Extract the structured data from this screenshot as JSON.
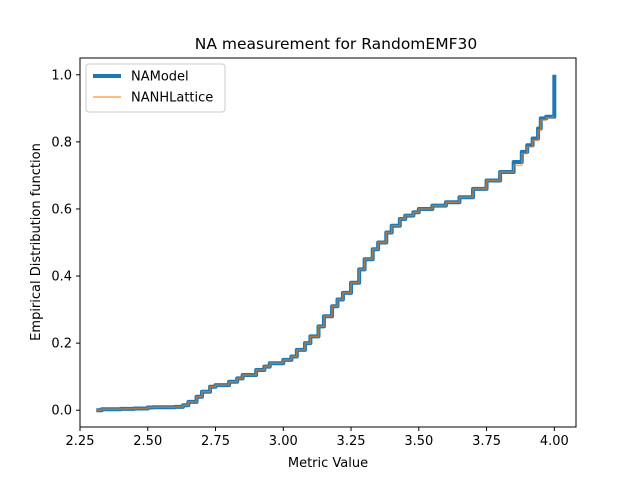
{
  "chart_data": {
    "type": "line",
    "title": "NA measurement for RandomEMF30",
    "xlabel": "Metric Value",
    "ylabel": "Empirical Distribution function",
    "xlim": [
      2.25,
      4.08
    ],
    "ylim": [
      -0.05,
      1.05
    ],
    "xticks": [
      2.25,
      2.5,
      2.75,
      3.0,
      3.25,
      3.5,
      3.75,
      4.0
    ],
    "xtick_labels": [
      "2.25",
      "2.50",
      "2.75",
      "3.00",
      "3.25",
      "3.50",
      "3.75",
      "4.00"
    ],
    "yticks": [
      0.0,
      0.2,
      0.4,
      0.6,
      0.8,
      1.0
    ],
    "ytick_labels": [
      "0.0",
      "0.2",
      "0.4",
      "0.6",
      "0.8",
      "1.0"
    ],
    "grid": false,
    "legend_position": "top-left",
    "series": [
      {
        "name": "NAModel",
        "color": "#1f77b4",
        "style": "thick",
        "x": [
          2.31,
          2.33,
          2.4,
          2.45,
          2.5,
          2.52,
          2.6,
          2.63,
          2.65,
          2.68,
          2.7,
          2.73,
          2.75,
          2.8,
          2.83,
          2.85,
          2.9,
          2.93,
          2.95,
          3.0,
          3.03,
          3.05,
          3.08,
          3.1,
          3.13,
          3.15,
          3.18,
          3.2,
          3.22,
          3.25,
          3.28,
          3.3,
          3.33,
          3.35,
          3.38,
          3.4,
          3.43,
          3.45,
          3.48,
          3.5,
          3.55,
          3.6,
          3.65,
          3.7,
          3.75,
          3.8,
          3.85,
          3.88,
          3.9,
          3.92,
          3.94,
          3.95,
          3.97,
          3.995,
          4.0,
          4.0
        ],
        "y": [
          0.0,
          0.003,
          0.004,
          0.005,
          0.008,
          0.009,
          0.01,
          0.015,
          0.025,
          0.04,
          0.055,
          0.07,
          0.075,
          0.085,
          0.095,
          0.105,
          0.12,
          0.13,
          0.14,
          0.15,
          0.16,
          0.18,
          0.2,
          0.22,
          0.25,
          0.28,
          0.31,
          0.33,
          0.35,
          0.38,
          0.42,
          0.45,
          0.48,
          0.5,
          0.53,
          0.55,
          0.57,
          0.58,
          0.59,
          0.6,
          0.61,
          0.62,
          0.635,
          0.66,
          0.685,
          0.71,
          0.74,
          0.77,
          0.79,
          0.81,
          0.84,
          0.87,
          0.875,
          0.875,
          0.875,
          1.0
        ]
      },
      {
        "name": "NANHLattice",
        "color": "#ff7f0e",
        "style": "thin",
        "x": [
          2.31,
          2.33,
          2.4,
          2.45,
          2.5,
          2.52,
          2.6,
          2.63,
          2.65,
          2.68,
          2.7,
          2.73,
          2.75,
          2.8,
          2.83,
          2.85,
          2.9,
          2.93,
          2.95,
          3.0,
          3.03,
          3.05,
          3.08,
          3.1,
          3.13,
          3.15,
          3.18,
          3.2,
          3.22,
          3.25,
          3.28,
          3.3,
          3.33,
          3.35,
          3.38,
          3.4,
          3.43,
          3.45,
          3.48,
          3.5,
          3.55,
          3.6,
          3.65,
          3.7,
          3.75,
          3.8,
          3.85,
          3.88,
          3.9,
          3.92,
          3.94,
          3.95,
          3.97,
          3.995,
          4.0
        ],
        "y": [
          0.0,
          0.003,
          0.004,
          0.005,
          0.008,
          0.009,
          0.01,
          0.015,
          0.025,
          0.04,
          0.055,
          0.07,
          0.075,
          0.085,
          0.095,
          0.105,
          0.12,
          0.13,
          0.14,
          0.15,
          0.16,
          0.18,
          0.2,
          0.22,
          0.25,
          0.28,
          0.31,
          0.33,
          0.35,
          0.38,
          0.42,
          0.45,
          0.48,
          0.5,
          0.53,
          0.55,
          0.57,
          0.58,
          0.59,
          0.6,
          0.61,
          0.62,
          0.635,
          0.66,
          0.685,
          0.71,
          0.73,
          0.765,
          0.785,
          0.805,
          0.835,
          0.865,
          0.872,
          0.875,
          0.875
        ]
      }
    ]
  }
}
